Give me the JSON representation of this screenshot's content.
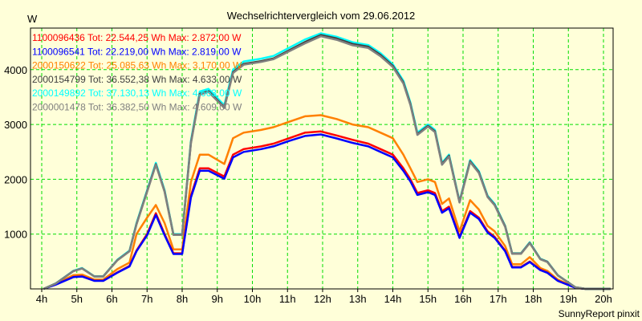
{
  "chart_data": {
    "type": "line",
    "title": "Wechselrichtervergleich vom 29.06.2012",
    "ylabel": "W",
    "xlabel": "",
    "footer": "SunnyReport pinxit",
    "xlim": [
      3.7,
      20.3
    ],
    "ylim": [
      0,
      4700
    ],
    "x_ticks": [
      4,
      5,
      6,
      7,
      8,
      9,
      10,
      11,
      12,
      13,
      14,
      15,
      16,
      17,
      18,
      19,
      20
    ],
    "x_tick_labels": [
      "4h",
      "5h",
      "6h",
      "7h",
      "8h",
      "9h",
      "10h",
      "11h",
      "12h",
      "13h",
      "14h",
      "15h",
      "16h",
      "17h",
      "18h",
      "19h",
      "20h"
    ],
    "y_ticks": [
      1000,
      2000,
      3000,
      4000
    ],
    "y_tick_labels": [
      "1000",
      "2000",
      "3000",
      "4000"
    ],
    "grid": true,
    "legend_position": "top-left",
    "x": [
      4.05,
      4.4,
      4.9,
      5.15,
      5.5,
      5.75,
      6.15,
      6.5,
      6.7,
      7.0,
      7.25,
      7.5,
      7.75,
      8.0,
      8.25,
      8.5,
      8.75,
      9.2,
      9.45,
      9.75,
      10.25,
      10.6,
      11.05,
      11.5,
      11.95,
      12.4,
      12.85,
      13.3,
      13.65,
      14.0,
      14.3,
      14.5,
      14.7,
      15.0,
      15.2,
      15.4,
      15.6,
      15.9,
      16.2,
      16.45,
      16.7,
      16.9,
      17.2,
      17.4,
      17.65,
      17.9,
      18.2,
      18.4,
      18.7,
      19.2,
      19.5,
      20.2
    ],
    "series": [
      {
        "id": "1100096436",
        "tot": "22.544,25 Wh",
        "max": "2.872,00 W",
        "color": "#ff0000",
        "values": [
          0,
          80,
          220,
          230,
          150,
          150,
          300,
          420,
          700,
          1000,
          1380,
          1000,
          650,
          650,
          1700,
          2200,
          2200,
          2050,
          2450,
          2550,
          2600,
          2650,
          2750,
          2850,
          2872,
          2800,
          2720,
          2650,
          2550,
          2450,
          2200,
          2000,
          1750,
          1800,
          1750,
          1420,
          1500,
          950,
          1420,
          1300,
          1050,
          950,
          700,
          400,
          400,
          500,
          350,
          300,
          150,
          20,
          0,
          0
        ]
      },
      {
        "id": "1100096541",
        "tot": "22.219,00 Wh",
        "max": "2.819,00 W",
        "color": "#0000ff",
        "values": [
          0,
          78,
          215,
          225,
          147,
          147,
          294,
          410,
          686,
          980,
          1350,
          980,
          637,
          637,
          1666,
          2156,
          2156,
          2010,
          2400,
          2500,
          2550,
          2600,
          2700,
          2790,
          2819,
          2745,
          2665,
          2600,
          2500,
          2400,
          2155,
          1960,
          1715,
          1765,
          1715,
          1390,
          1470,
          930,
          1390,
          1275,
          1030,
          930,
          686,
          392,
          392,
          490,
          343,
          294,
          147,
          20,
          0,
          0
        ]
      },
      {
        "id": "2000150622",
        "tot": "25.085,63 Wh",
        "max": "3.170,00 W",
        "color": "#ff8000",
        "values": [
          0,
          90,
          250,
          260,
          170,
          170,
          360,
          480,
          1000,
          1300,
          1530,
          1200,
          720,
          720,
          1950,
          2450,
          2450,
          2280,
          2750,
          2850,
          2900,
          2950,
          3050,
          3150,
          3170,
          3100,
          3000,
          2950,
          2850,
          2750,
          2450,
          2200,
          1950,
          2000,
          1950,
          1550,
          1650,
          1050,
          1620,
          1450,
          1150,
          1050,
          780,
          450,
          450,
          580,
          380,
          330,
          170,
          25,
          0,
          0
        ]
      },
      {
        "id": "2000154799",
        "tot": "36.552,38 Wh",
        "max": "4.633,00 W",
        "color": "#404040",
        "values": [
          0,
          98,
          325,
          375,
          227,
          227,
          523,
          690,
          1185,
          1780,
          2275,
          1780,
          990,
          990,
          2670,
          3560,
          3610,
          3315,
          3955,
          4105,
          4155,
          4205,
          4355,
          4505,
          4633,
          4570,
          4470,
          4420,
          4270,
          4070,
          3770,
          3375,
          2825,
          2975,
          2875,
          2280,
          2430,
          1585,
          2330,
          2130,
          1685,
          1535,
          1140,
          645,
          645,
          840,
          545,
          495,
          248,
          30,
          0,
          0
        ]
      },
      {
        "id": "2000149892",
        "tot": "37.130,13 Wh",
        "max": "4.663,00 W",
        "color": "#00ffff",
        "values": [
          0,
          100,
          330,
          380,
          230,
          230,
          530,
          700,
          1200,
          1800,
          2300,
          1800,
          1000,
          1000,
          2700,
          3600,
          3650,
          3350,
          4000,
          4150,
          4200,
          4250,
          4400,
          4550,
          4663,
          4600,
          4500,
          4450,
          4300,
          4100,
          3800,
          3400,
          2850,
          3000,
          2900,
          2300,
          2450,
          1600,
          2350,
          2150,
          1700,
          1550,
          1150,
          650,
          650,
          850,
          550,
          500,
          250,
          30,
          0,
          0
        ]
      },
      {
        "id": "2000001478",
        "tot": "36.382,50 Wh",
        "max": "4.609,00 W",
        "color": "#808080",
        "values": [
          0,
          97,
          323,
          372,
          225,
          225,
          520,
          686,
          1175,
          1770,
          2265,
          1770,
          985,
          985,
          2655,
          3545,
          3595,
          3300,
          3940,
          4090,
          4140,
          4190,
          4335,
          4480,
          4609,
          4545,
          4445,
          4395,
          4245,
          4050,
          3750,
          3355,
          2810,
          2960,
          2860,
          2265,
          2415,
          1575,
          2315,
          2115,
          1675,
          1525,
          1130,
          640,
          640,
          835,
          540,
          490,
          245,
          30,
          0,
          0
        ]
      }
    ],
    "legend_tot_label": "Tot:",
    "legend_max_label": "Max:"
  }
}
